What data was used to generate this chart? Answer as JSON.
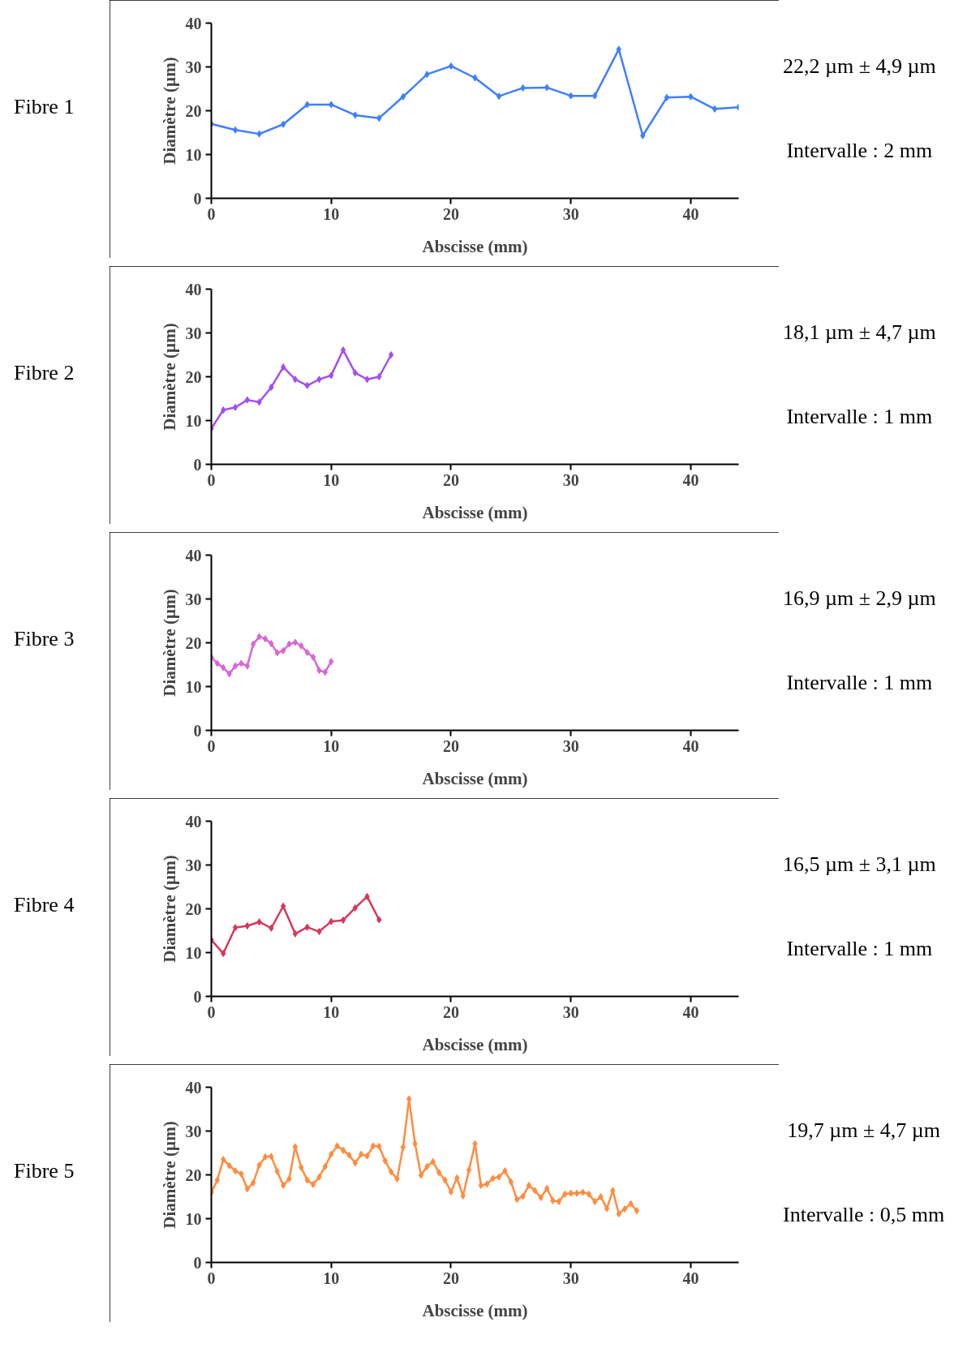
{
  "chart_data": [
    {
      "type": "line",
      "title": "Fibre 1",
      "xlabel": "Abscisse (mm)",
      "ylabel": "Diamètre (µm)",
      "xlim": [
        0,
        44
      ],
      "xticks": [
        0,
        10,
        20,
        30,
        40
      ],
      "ylim": [
        0,
        40
      ],
      "yticks": [
        0,
        10,
        20,
        30,
        40
      ],
      "marker": "diamond",
      "grid": false,
      "annotations": [
        "22,2 µm ± 4,9 µm",
        "Intervalle : 2 mm"
      ],
      "series": [
        {
          "color": "#3f7fff",
          "x": [
            0,
            2,
            4,
            6,
            8,
            10,
            12,
            14,
            16,
            18,
            20,
            22,
            24,
            26,
            28,
            30,
            32,
            34,
            36,
            38,
            40,
            42,
            44
          ],
          "values": [
            17.0,
            15.6,
            14.7,
            16.9,
            21.4,
            21.4,
            19,
            18.3,
            23.2,
            28.3,
            30.2,
            27.5,
            23.3,
            25.2,
            25.3,
            23.4,
            23.4,
            34,
            14.3,
            23,
            23.2,
            20.4,
            20.8
          ]
        }
      ]
    },
    {
      "type": "line",
      "title": "Fibre 2",
      "xlabel": "Abscisse (mm)",
      "ylabel": "Diamètre (µm)",
      "xlim": [
        0,
        44
      ],
      "xticks": [
        0,
        10,
        20,
        30,
        40
      ],
      "ylim": [
        0,
        40
      ],
      "yticks": [
        0,
        10,
        20,
        30,
        40
      ],
      "marker": "diamond",
      "grid": false,
      "annotations": [
        "18,1 µm ± 4,7 µm",
        "Intervalle : 1 mm"
      ],
      "series": [
        {
          "color": "#a34fef",
          "x": [
            0,
            1,
            2,
            3,
            4,
            5,
            6,
            7,
            8,
            9,
            10,
            11,
            12,
            13,
            14,
            15
          ],
          "values": [
            8.2,
            12.4,
            13,
            14.7,
            14.2,
            17.6,
            22.2,
            19.4,
            18,
            19.4,
            20.3,
            26.1,
            20.9,
            19.4,
            20,
            25
          ]
        }
      ]
    },
    {
      "type": "line",
      "title": "Fibre 3",
      "xlabel": "Abscisse (mm)",
      "ylabel": "Diamètre (µm)",
      "xlim": [
        0,
        44
      ],
      "xticks": [
        0,
        10,
        20,
        30,
        40
      ],
      "ylim": [
        0,
        40
      ],
      "yticks": [
        0,
        10,
        20,
        30,
        40
      ],
      "marker": "diamond",
      "grid": false,
      "annotations": [
        "16,9 µm ± 2,9 µm",
        "Intervalle : 1 mm"
      ],
      "series": [
        {
          "color": "#d966d6",
          "x": [
            0,
            0.5,
            1,
            1.5,
            2,
            2.5,
            3,
            3.5,
            4,
            4.5,
            5,
            5.5,
            6,
            6.5,
            7,
            7.5,
            8,
            8.5,
            9,
            9.5,
            10
          ],
          "values": [
            16.7,
            15.3,
            14.3,
            12.9,
            14.7,
            15.3,
            14.7,
            19.7,
            21.4,
            20.9,
            19.8,
            17.7,
            18.2,
            19.7,
            20.1,
            19.3,
            17.8,
            16.7,
            13.7,
            13.3,
            15.7
          ]
        }
      ]
    },
    {
      "type": "line",
      "title": "Fibre 4",
      "xlabel": "Abscisse (mm)",
      "ylabel": "Diamètre (µm)",
      "xlim": [
        0,
        44
      ],
      "xticks": [
        0,
        10,
        20,
        30,
        40
      ],
      "ylim": [
        0,
        40
      ],
      "yticks": [
        0,
        10,
        20,
        30,
        40
      ],
      "marker": "diamond",
      "grid": false,
      "annotations": [
        "16,5 µm ± 3,1 µm",
        "Intervalle : 1 mm"
      ],
      "series": [
        {
          "color": "#d6385c",
          "x": [
            0,
            1,
            2,
            3,
            4,
            5,
            6,
            7,
            8,
            9,
            10,
            11,
            12,
            13,
            14
          ],
          "values": [
            12.9,
            9.8,
            15.7,
            16.1,
            17,
            15.6,
            20.6,
            14.3,
            15.8,
            14.8,
            17.1,
            17.4,
            20.2,
            22.8,
            17.5
          ]
        }
      ]
    },
    {
      "type": "line",
      "title": "Fibre 5",
      "xlabel": "Abscisse (mm)",
      "ylabel": "Diamètre (µm)",
      "xlim": [
        0,
        44
      ],
      "xticks": [
        0,
        10,
        20,
        30,
        40
      ],
      "ylim": [
        0,
        40
      ],
      "yticks": [
        0,
        10,
        20,
        30,
        40
      ],
      "marker": "diamond",
      "grid": false,
      "annotations": [
        "19,7 µm ± 4,7 µm",
        "Intervalle : 0,5 mm"
      ],
      "series": [
        {
          "color": "#ff8c3f",
          "x": [
            0,
            0.5,
            1,
            1.5,
            2,
            2.5,
            3,
            3.5,
            4,
            4.5,
            5,
            5.5,
            6,
            6.5,
            7,
            7.5,
            8,
            8.5,
            9,
            9.5,
            10,
            10.5,
            11,
            11.5,
            12,
            12.5,
            13,
            13.5,
            14,
            14.5,
            15,
            15.5,
            16,
            16.5,
            17,
            17.5,
            18,
            18.5,
            19,
            19.5,
            20,
            20.5,
            21,
            21.5,
            22,
            22.5,
            23,
            23.5,
            24,
            24.5,
            25,
            25.5,
            26,
            26.5,
            27,
            27.5,
            28,
            28.5,
            29,
            29.5,
            30,
            30.5,
            31,
            31.5,
            32,
            32.5,
            33,
            33.5,
            34,
            34.5,
            35,
            35.5
          ],
          "values": [
            16,
            18.8,
            23.5,
            22.1,
            20.9,
            20.2,
            16.8,
            18.2,
            22.2,
            24.1,
            24.2,
            20.8,
            17.6,
            19.1,
            26.4,
            21.7,
            18.8,
            17.8,
            19.5,
            21.9,
            24.7,
            26.6,
            25.6,
            24.5,
            22.7,
            24.7,
            24.3,
            26.6,
            26.5,
            23.2,
            20.7,
            19.1,
            26.3,
            37.3,
            27.1,
            19.9,
            21.9,
            23,
            20.5,
            18.8,
            16.1,
            19.3,
            15.2,
            21.1,
            27.1,
            17.6,
            17.9,
            19.2,
            19.5,
            20.9,
            18.4,
            14.4,
            15.1,
            17.6,
            16.4,
            14.8,
            16.9,
            14.1,
            13.9,
            15.6,
            15.8,
            15.8,
            16,
            15.6,
            13.9,
            15,
            12.3,
            16.4,
            11.1,
            12.2,
            13.4,
            11.8
          ]
        }
      ]
    }
  ]
}
